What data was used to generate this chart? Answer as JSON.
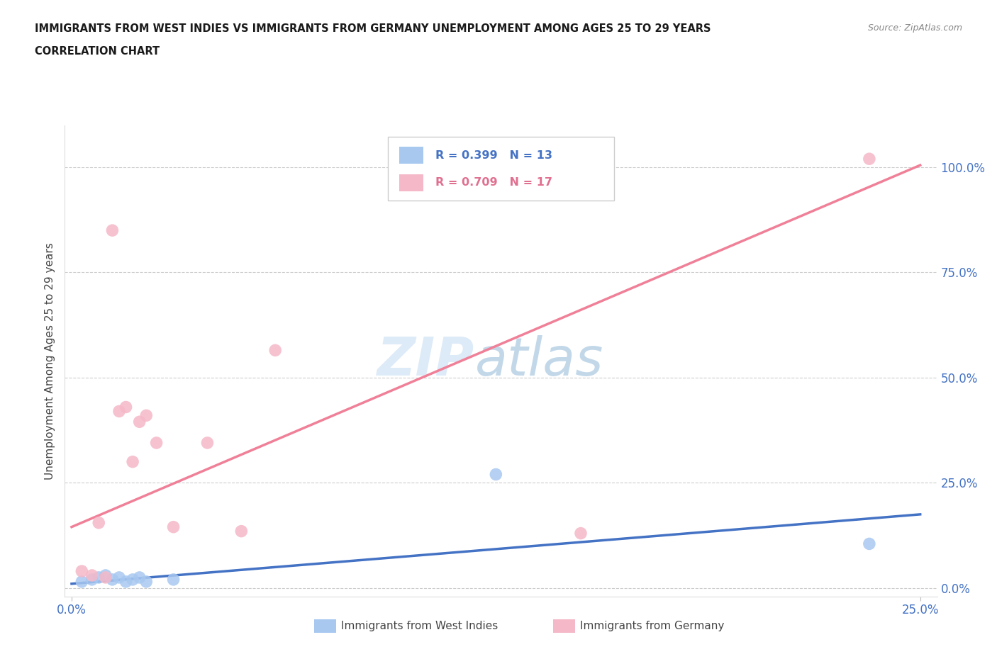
{
  "title_line1": "IMMIGRANTS FROM WEST INDIES VS IMMIGRANTS FROM GERMANY UNEMPLOYMENT AMONG AGES 25 TO 29 YEARS",
  "title_line2": "CORRELATION CHART",
  "source_text": "Source: ZipAtlas.com",
  "ylabel": "Unemployment Among Ages 25 to 29 years",
  "xlim": [
    -0.002,
    0.255
  ],
  "ylim": [
    -0.02,
    1.1
  ],
  "ytick_positions": [
    0.0,
    0.25,
    0.5,
    0.75,
    1.0
  ],
  "ytick_labels": [
    "0.0%",
    "25.0%",
    "50.0%",
    "75.0%",
    "100.0%"
  ],
  "xtick_positions": [
    0.0,
    0.25
  ],
  "xtick_labels": [
    "0.0%",
    "25.0%"
  ],
  "watermark_zip": "ZIP",
  "watermark_atlas": "atlas",
  "legend_r1": "R = 0.399   N = 13",
  "legend_r2": "R = 0.709   N = 17",
  "color_west_indies": "#a8c8f0",
  "color_germany": "#f5b8c8",
  "line_color_west_indies": "#4472c4",
  "line_color_germany": "#f08098",
  "west_indies_x": [
    0.003,
    0.006,
    0.008,
    0.01,
    0.012,
    0.014,
    0.016,
    0.018,
    0.02,
    0.022,
    0.03,
    0.125,
    0.235
  ],
  "west_indies_y": [
    0.015,
    0.02,
    0.025,
    0.03,
    0.02,
    0.025,
    0.015,
    0.02,
    0.025,
    0.015,
    0.02,
    0.27,
    0.105
  ],
  "germany_x": [
    0.003,
    0.006,
    0.008,
    0.01,
    0.012,
    0.014,
    0.016,
    0.018,
    0.02,
    0.022,
    0.025,
    0.03,
    0.04,
    0.05,
    0.06,
    0.15,
    0.235
  ],
  "germany_y": [
    0.04,
    0.03,
    0.155,
    0.025,
    0.85,
    0.42,
    0.43,
    0.3,
    0.395,
    0.41,
    0.345,
    0.145,
    0.345,
    0.135,
    0.565,
    0.13,
    1.02
  ],
  "blue_trendline_x": [
    0.0,
    0.25
  ],
  "blue_trendline_y": [
    0.01,
    0.175
  ],
  "pink_trendline_x": [
    0.0,
    0.25
  ],
  "pink_trendline_y": [
    0.145,
    1.005
  ],
  "marker_size": 160,
  "background_color": "#ffffff",
  "grid_color": "#cccccc",
  "title_color": "#1a1a1a",
  "tick_label_color": "#4472c4",
  "legend_text_color_1": "#4472c4",
  "legend_text_color_2": "#e07090"
}
